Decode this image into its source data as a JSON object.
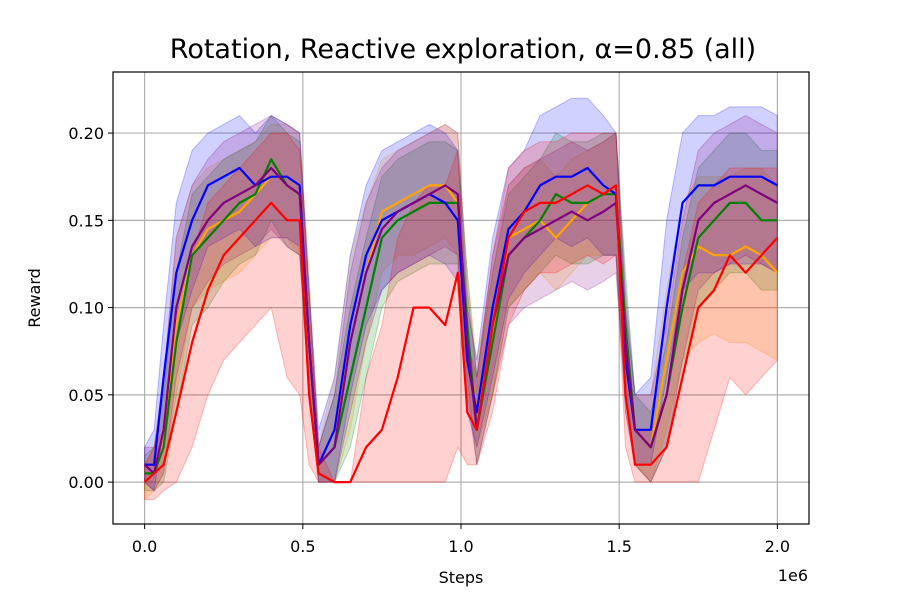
{
  "chart_data": {
    "type": "line",
    "title": "Rotation, Reactive exploration, α=0.85 (all)",
    "xlabel": "Steps",
    "ylabel": "Reward",
    "x_offset_label": "1e6",
    "xlim": [
      -0.1,
      2.1
    ],
    "ylim": [
      -0.024,
      0.235
    ],
    "xticks": [
      0.0,
      0.5,
      1.0,
      1.5,
      2.0
    ],
    "xtick_labels": [
      "0.0",
      "0.5",
      "1.0",
      "1.5",
      "2.0"
    ],
    "yticks": [
      0.0,
      0.05,
      0.1,
      0.15,
      0.2
    ],
    "ytick_labels": [
      "0.00",
      "0.05",
      "0.10",
      "0.15",
      "0.20"
    ],
    "grid": true,
    "band_opacity": 0.18,
    "series": [
      {
        "color": "#ffa500",
        "x": [
          0.0,
          0.03,
          0.06,
          0.1,
          0.15,
          0.2,
          0.25,
          0.3,
          0.35,
          0.4,
          0.45,
          0.49,
          0.52,
          0.55,
          0.6,
          0.65,
          0.7,
          0.75,
          0.8,
          0.85,
          0.9,
          0.95,
          0.99,
          1.02,
          1.05,
          1.1,
          1.15,
          1.2,
          1.25,
          1.3,
          1.35,
          1.4,
          1.45,
          1.49,
          1.52,
          1.55,
          1.6,
          1.65,
          1.7,
          1.75,
          1.8,
          1.85,
          1.9,
          1.95,
          2.0
        ],
        "y": [
          0.0,
          0.005,
          0.03,
          0.09,
          0.13,
          0.145,
          0.15,
          0.155,
          0.165,
          0.175,
          0.175,
          0.17,
          0.08,
          0.01,
          0.03,
          0.08,
          0.12,
          0.155,
          0.16,
          0.165,
          0.17,
          0.17,
          0.16,
          0.08,
          0.04,
          0.08,
          0.14,
          0.145,
          0.15,
          0.14,
          0.15,
          0.16,
          0.165,
          0.17,
          0.07,
          0.03,
          0.02,
          0.07,
          0.12,
          0.135,
          0.13,
          0.13,
          0.135,
          0.13,
          0.12
        ],
        "lower": [
          -0.01,
          -0.005,
          0.005,
          0.05,
          0.1,
          0.11,
          0.115,
          0.12,
          0.13,
          0.14,
          0.14,
          0.13,
          0.05,
          0.0,
          0.0,
          0.03,
          0.08,
          0.12,
          0.13,
          0.13,
          0.135,
          0.14,
          0.13,
          0.05,
          0.02,
          0.05,
          0.1,
          0.11,
          0.12,
          0.11,
          0.12,
          0.13,
          0.13,
          0.13,
          0.04,
          0.01,
          0.0,
          0.03,
          0.07,
          0.08,
          0.085,
          0.08,
          0.08,
          0.075,
          0.07
        ],
        "upper": [
          0.01,
          0.02,
          0.06,
          0.14,
          0.17,
          0.18,
          0.185,
          0.19,
          0.195,
          0.205,
          0.205,
          0.2,
          0.12,
          0.02,
          0.06,
          0.13,
          0.16,
          0.185,
          0.19,
          0.195,
          0.2,
          0.205,
          0.2,
          0.12,
          0.07,
          0.12,
          0.17,
          0.18,
          0.185,
          0.175,
          0.185,
          0.19,
          0.195,
          0.2,
          0.1,
          0.05,
          0.05,
          0.11,
          0.16,
          0.175,
          0.175,
          0.175,
          0.18,
          0.18,
          0.17
        ]
      },
      {
        "color": "#008000",
        "x": [
          0.0,
          0.03,
          0.06,
          0.1,
          0.15,
          0.2,
          0.25,
          0.3,
          0.35,
          0.4,
          0.45,
          0.49,
          0.52,
          0.55,
          0.6,
          0.65,
          0.7,
          0.75,
          0.8,
          0.85,
          0.9,
          0.95,
          0.99,
          1.02,
          1.05,
          1.1,
          1.15,
          1.2,
          1.25,
          1.3,
          1.35,
          1.4,
          1.45,
          1.49,
          1.52,
          1.55,
          1.6,
          1.65,
          1.7,
          1.75,
          1.8,
          1.85,
          1.9,
          1.95,
          2.0
        ],
        "y": [
          0.005,
          0.005,
          0.02,
          0.08,
          0.13,
          0.14,
          0.15,
          0.16,
          0.165,
          0.185,
          0.17,
          0.165,
          0.08,
          0.01,
          0.02,
          0.06,
          0.1,
          0.14,
          0.15,
          0.155,
          0.16,
          0.16,
          0.16,
          0.09,
          0.03,
          0.08,
          0.13,
          0.14,
          0.15,
          0.165,
          0.16,
          0.16,
          0.165,
          0.165,
          0.09,
          0.03,
          0.02,
          0.05,
          0.1,
          0.14,
          0.15,
          0.16,
          0.16,
          0.15,
          0.15
        ],
        "lower": [
          -0.005,
          -0.005,
          0.0,
          0.04,
          0.09,
          0.1,
          0.115,
          0.125,
          0.13,
          0.15,
          0.135,
          0.13,
          0.05,
          0.0,
          0.0,
          0.02,
          0.06,
          0.1,
          0.115,
          0.12,
          0.125,
          0.125,
          0.125,
          0.06,
          0.01,
          0.05,
          0.1,
          0.11,
          0.12,
          0.13,
          0.125,
          0.125,
          0.13,
          0.13,
          0.06,
          0.01,
          0.0,
          0.02,
          0.06,
          0.1,
          0.11,
          0.12,
          0.12,
          0.11,
          0.11
        ],
        "upper": [
          0.015,
          0.02,
          0.05,
          0.12,
          0.165,
          0.175,
          0.185,
          0.19,
          0.195,
          0.21,
          0.2,
          0.195,
          0.11,
          0.02,
          0.05,
          0.1,
          0.14,
          0.175,
          0.185,
          0.19,
          0.195,
          0.195,
          0.19,
          0.12,
          0.06,
          0.12,
          0.165,
          0.175,
          0.185,
          0.2,
          0.195,
          0.195,
          0.2,
          0.2,
          0.12,
          0.05,
          0.04,
          0.08,
          0.14,
          0.18,
          0.19,
          0.2,
          0.2,
          0.19,
          0.19
        ]
      },
      {
        "color": "#0000ff",
        "x": [
          0.0,
          0.03,
          0.06,
          0.1,
          0.15,
          0.2,
          0.25,
          0.3,
          0.35,
          0.4,
          0.45,
          0.49,
          0.52,
          0.55,
          0.6,
          0.65,
          0.7,
          0.75,
          0.8,
          0.85,
          0.9,
          0.95,
          0.99,
          1.02,
          1.05,
          1.1,
          1.15,
          1.2,
          1.25,
          1.3,
          1.35,
          1.4,
          1.45,
          1.49,
          1.52,
          1.55,
          1.6,
          1.65,
          1.7,
          1.75,
          1.8,
          1.85,
          1.9,
          1.95,
          2.0
        ],
        "y": [
          0.01,
          0.01,
          0.06,
          0.12,
          0.15,
          0.17,
          0.175,
          0.18,
          0.17,
          0.175,
          0.175,
          0.17,
          0.08,
          0.01,
          0.03,
          0.09,
          0.13,
          0.15,
          0.155,
          0.16,
          0.165,
          0.16,
          0.15,
          0.07,
          0.04,
          0.1,
          0.145,
          0.155,
          0.17,
          0.175,
          0.175,
          0.18,
          0.17,
          0.165,
          0.07,
          0.03,
          0.03,
          0.1,
          0.16,
          0.17,
          0.17,
          0.175,
          0.175,
          0.175,
          0.17
        ],
        "lower": [
          0.0,
          -0.005,
          0.03,
          0.08,
          0.11,
          0.135,
          0.14,
          0.145,
          0.135,
          0.14,
          0.14,
          0.135,
          0.05,
          0.0,
          0.0,
          0.05,
          0.09,
          0.11,
          0.12,
          0.125,
          0.13,
          0.125,
          0.115,
          0.04,
          0.02,
          0.06,
          0.105,
          0.12,
          0.13,
          0.14,
          0.135,
          0.14,
          0.13,
          0.13,
          0.04,
          0.01,
          0.01,
          0.06,
          0.11,
          0.12,
          0.12,
          0.125,
          0.125,
          0.125,
          0.12
        ],
        "upper": [
          0.02,
          0.03,
          0.09,
          0.16,
          0.19,
          0.2,
          0.205,
          0.21,
          0.2,
          0.21,
          0.205,
          0.2,
          0.11,
          0.03,
          0.06,
          0.13,
          0.17,
          0.19,
          0.195,
          0.2,
          0.205,
          0.2,
          0.19,
          0.1,
          0.07,
          0.14,
          0.18,
          0.19,
          0.21,
          0.215,
          0.22,
          0.22,
          0.21,
          0.2,
          0.1,
          0.05,
          0.06,
          0.15,
          0.2,
          0.21,
          0.21,
          0.215,
          0.215,
          0.215,
          0.21
        ]
      },
      {
        "color": "#800080",
        "x": [
          0.0,
          0.03,
          0.06,
          0.1,
          0.15,
          0.2,
          0.25,
          0.3,
          0.35,
          0.4,
          0.45,
          0.49,
          0.52,
          0.55,
          0.6,
          0.65,
          0.7,
          0.75,
          0.8,
          0.85,
          0.9,
          0.95,
          0.99,
          1.02,
          1.05,
          1.1,
          1.15,
          1.2,
          1.25,
          1.3,
          1.35,
          1.4,
          1.45,
          1.49,
          1.52,
          1.55,
          1.6,
          1.65,
          1.7,
          1.75,
          1.8,
          1.85,
          1.9,
          1.95,
          2.0
        ],
        "y": [
          0.01,
          0.005,
          0.03,
          0.1,
          0.135,
          0.15,
          0.16,
          0.165,
          0.17,
          0.18,
          0.17,
          0.165,
          0.08,
          0.01,
          0.02,
          0.08,
          0.12,
          0.145,
          0.155,
          0.16,
          0.165,
          0.17,
          0.165,
          0.08,
          0.03,
          0.09,
          0.13,
          0.14,
          0.145,
          0.15,
          0.155,
          0.15,
          0.155,
          0.16,
          0.08,
          0.03,
          0.02,
          0.05,
          0.11,
          0.15,
          0.16,
          0.165,
          0.17,
          0.165,
          0.16
        ],
        "lower": [
          0.0,
          -0.005,
          0.005,
          0.06,
          0.1,
          0.115,
          0.125,
          0.13,
          0.135,
          0.145,
          0.135,
          0.13,
          0.05,
          0.0,
          0.0,
          0.04,
          0.08,
          0.11,
          0.12,
          0.125,
          0.13,
          0.135,
          0.13,
          0.05,
          0.01,
          0.05,
          0.09,
          0.1,
          0.105,
          0.11,
          0.115,
          0.11,
          0.115,
          0.12,
          0.05,
          0.01,
          0.0,
          0.02,
          0.07,
          0.11,
          0.12,
          0.125,
          0.13,
          0.125,
          0.12
        ],
        "upper": [
          0.02,
          0.02,
          0.06,
          0.14,
          0.17,
          0.185,
          0.195,
          0.2,
          0.205,
          0.21,
          0.205,
          0.2,
          0.11,
          0.02,
          0.05,
          0.12,
          0.16,
          0.18,
          0.19,
          0.195,
          0.2,
          0.205,
          0.2,
          0.11,
          0.06,
          0.13,
          0.17,
          0.18,
          0.185,
          0.19,
          0.195,
          0.19,
          0.195,
          0.2,
          0.11,
          0.05,
          0.05,
          0.09,
          0.15,
          0.19,
          0.2,
          0.205,
          0.21,
          0.205,
          0.2
        ]
      },
      {
        "color": "#ff0000",
        "x": [
          0.0,
          0.03,
          0.06,
          0.1,
          0.15,
          0.2,
          0.25,
          0.3,
          0.35,
          0.4,
          0.45,
          0.49,
          0.52,
          0.55,
          0.6,
          0.65,
          0.7,
          0.75,
          0.8,
          0.85,
          0.9,
          0.95,
          0.99,
          1.02,
          1.05,
          1.1,
          1.15,
          1.2,
          1.25,
          1.3,
          1.35,
          1.4,
          1.45,
          1.49,
          1.52,
          1.55,
          1.6,
          1.65,
          1.7,
          1.75,
          1.8,
          1.85,
          1.9,
          1.95,
          2.0
        ],
        "y": [
          0.0,
          0.005,
          0.01,
          0.04,
          0.08,
          0.11,
          0.13,
          0.14,
          0.15,
          0.16,
          0.15,
          0.15,
          0.05,
          0.005,
          0.0,
          0.0,
          0.02,
          0.03,
          0.06,
          0.1,
          0.1,
          0.09,
          0.12,
          0.04,
          0.03,
          0.09,
          0.14,
          0.155,
          0.16,
          0.16,
          0.165,
          0.17,
          0.165,
          0.17,
          0.05,
          0.01,
          0.01,
          0.02,
          0.06,
          0.1,
          0.11,
          0.13,
          0.12,
          0.13,
          0.14
        ],
        "lower": [
          -0.01,
          -0.01,
          -0.005,
          0.0,
          0.02,
          0.05,
          0.07,
          0.08,
          0.09,
          0.1,
          0.06,
          0.05,
          0.01,
          0.0,
          0.0,
          0.0,
          0.0,
          0.0,
          0.0,
          0.0,
          0.0,
          0.0,
          0.02,
          0.01,
          0.01,
          0.04,
          0.09,
          0.11,
          0.12,
          0.12,
          0.125,
          0.13,
          0.125,
          0.13,
          0.02,
          0.0,
          0.0,
          0.0,
          0.0,
          0.0,
          0.03,
          0.06,
          0.05,
          0.06,
          0.07
        ],
        "upper": [
          0.01,
          0.02,
          0.03,
          0.08,
          0.13,
          0.16,
          0.17,
          0.18,
          0.19,
          0.2,
          0.2,
          0.19,
          0.1,
          0.02,
          0.0,
          0.0,
          0.06,
          0.09,
          0.14,
          0.16,
          0.17,
          0.17,
          0.19,
          0.08,
          0.06,
          0.13,
          0.18,
          0.19,
          0.195,
          0.195,
          0.2,
          0.2,
          0.2,
          0.2,
          0.08,
          0.03,
          0.03,
          0.05,
          0.12,
          0.16,
          0.17,
          0.18,
          0.18,
          0.18,
          0.18
        ]
      }
    ]
  }
}
